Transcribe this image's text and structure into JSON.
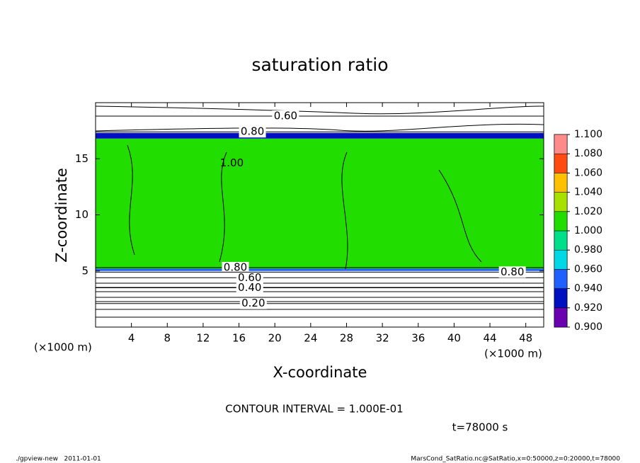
{
  "chart_data": {
    "type": "contour",
    "title": "saturation ratio",
    "xlabel": "X-coordinate",
    "ylabel": "Z-coordinate",
    "x_unit_left": "(×1000 m)",
    "x_unit_right": "(×1000 m)",
    "xlim": [
      0,
      50
    ],
    "ylim": [
      0,
      20
    ],
    "xticks": [
      4,
      8,
      12,
      16,
      20,
      24,
      28,
      32,
      36,
      40,
      44,
      48
    ],
    "yticks": [
      5,
      10,
      15
    ],
    "field": [
      {
        "zlim": [
          5.2,
          16.8
        ],
        "value": 1.01
      },
      {
        "zlim": [
          16.8,
          17.3
        ],
        "value": 0.93
      },
      {
        "zlim": [
          5.0,
          5.2
        ],
        "value": 0.95
      }
    ],
    "contours": [
      {
        "value": 0.6,
        "label": "0.60",
        "z": 18.8,
        "label_x": 21.2
      },
      {
        "value": 0.8,
        "label": "0.80",
        "z": 17.4,
        "label_x": 17.5
      },
      {
        "value": 1.0,
        "label": "1.00",
        "z": 14.6,
        "label_x": 15.2
      },
      {
        "value": 0.8,
        "label": "0.80",
        "z": 5.3,
        "label_x": 15.6
      },
      {
        "value": 0.6,
        "label": "0.60",
        "z": 4.4,
        "label_x": 17.2
      },
      {
        "value": 0.4,
        "label": "0.40",
        "z": 3.5,
        "label_x": 17.2
      },
      {
        "value": 0.2,
        "label": "0.20",
        "z": 2.1,
        "label_x": 17.6
      },
      {
        "value": 0.8,
        "label": "0.80",
        "z": 4.9,
        "label_x": 46.5
      }
    ],
    "colorbar": {
      "ticks": [
        {
          "value": 0.9,
          "label": "0.900"
        },
        {
          "value": 0.92,
          "label": "0.920"
        },
        {
          "value": 0.94,
          "label": "0.940"
        },
        {
          "value": 0.96,
          "label": "0.960"
        },
        {
          "value": 0.98,
          "label": "0.980"
        },
        {
          "value": 1.0,
          "label": "1.000"
        },
        {
          "value": 1.02,
          "label": "1.020"
        },
        {
          "value": 1.04,
          "label": "1.040"
        },
        {
          "value": 1.06,
          "label": "1.060"
        },
        {
          "value": 1.08,
          "label": "1.080"
        },
        {
          "value": 1.1,
          "label": "1.100"
        }
      ],
      "colors": [
        "#6a00b0",
        "#0010c0",
        "#2060ff",
        "#00d8e8",
        "#00e08a",
        "#22dd00",
        "#a8e000",
        "#ffc000",
        "#ff4a10",
        "#ff8a8a"
      ]
    },
    "contour_interval": "CONTOUR INTERVAL = 1.000E-01",
    "time_label": "t=78000 s",
    "footer_left": "./gpview-new   2011-01-01",
    "footer_right": "MarsCond_SatRatio.nc@SatRatio,x=0:50000,z=0:20000,t=78000"
  }
}
